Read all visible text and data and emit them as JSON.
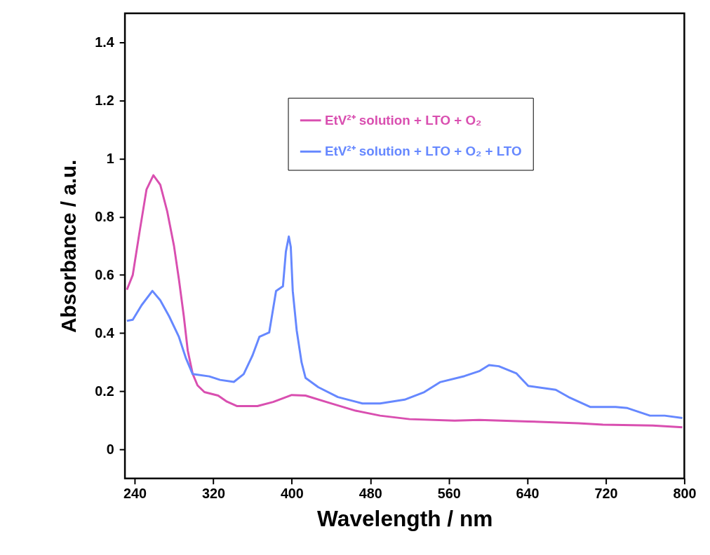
{
  "chart_data": {
    "type": "line",
    "xlabel": "Wavelength / nm",
    "ylabel": "Absorbance / a.u.",
    "xlim": [
      230,
      800
    ],
    "xticks": [
      240,
      320,
      400,
      480,
      560,
      640,
      720,
      800
    ],
    "ylim": [
      -0.1,
      1.5
    ],
    "yticks": [
      0,
      0.2,
      0.4,
      0.6,
      0.8,
      1,
      1.2,
      1.4
    ],
    "grid": false,
    "legend": "top right",
    "marker": "none",
    "line_style": "solid",
    "series": [
      {
        "name": "EtV²⁺ solution + LTO + O₂",
        "color": "#d94fb0",
        "x": [
          232,
          238,
          245,
          252,
          259,
          266,
          273,
          280,
          285,
          290,
          294,
          299,
          304,
          311,
          325,
          334,
          344,
          365,
          381,
          400,
          414,
          440,
          465,
          490,
          520,
          566,
          591,
          641,
          692,
          717,
          768,
          798
        ],
        "values": [
          0.549,
          0.6,
          0.75,
          0.894,
          0.943,
          0.91,
          0.82,
          0.7,
          0.585,
          0.458,
          0.34,
          0.26,
          0.22,
          0.197,
          0.185,
          0.164,
          0.149,
          0.149,
          0.163,
          0.187,
          0.185,
          0.158,
          0.133,
          0.116,
          0.104,
          0.099,
          0.101,
          0.096,
          0.09,
          0.085,
          0.082,
          0.076
        ]
      },
      {
        "name": "EtV²⁺ solution + LTO + O₂ + LTO",
        "color": "#6688ff",
        "x": [
          232,
          238,
          247,
          258,
          266,
          275,
          285,
          292,
          299,
          316,
          327,
          341,
          351,
          360,
          367,
          377,
          384,
          391,
          394,
          397,
          399,
          401,
          405,
          410,
          414,
          427,
          447,
          472,
          490,
          515,
          535,
          551,
          576,
          591,
          601,
          611,
          629,
          641,
          669,
          682,
          704,
          730,
          742,
          765,
          780,
          798
        ],
        "values": [
          0.442,
          0.446,
          0.496,
          0.545,
          0.513,
          0.458,
          0.387,
          0.315,
          0.259,
          0.251,
          0.239,
          0.232,
          0.259,
          0.323,
          0.387,
          0.402,
          0.545,
          0.561,
          0.68,
          0.732,
          0.696,
          0.545,
          0.41,
          0.299,
          0.246,
          0.214,
          0.18,
          0.158,
          0.158,
          0.171,
          0.197,
          0.231,
          0.252,
          0.269,
          0.29,
          0.286,
          0.261,
          0.218,
          0.205,
          0.18,
          0.146,
          0.146,
          0.142,
          0.116,
          0.116,
          0.108
        ]
      }
    ]
  }
}
